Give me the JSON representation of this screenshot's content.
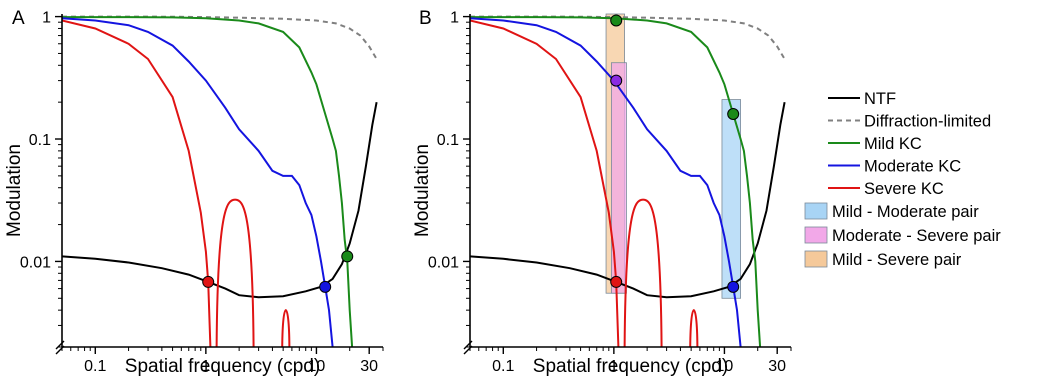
{
  "chart_data": [
    {
      "panel_label": "A",
      "type": "line",
      "xlabel": "Spatial frequency (cpd)",
      "ylabel": "Modulation",
      "x_scale": "log",
      "y_scale": "log",
      "xlim": [
        0.05,
        40
      ],
      "ylim": [
        0.002,
        1.05
      ],
      "x_ticks": [
        {
          "v": 0.1,
          "label": "0.1"
        },
        {
          "v": 1,
          "label": "1"
        },
        {
          "v": 10,
          "label": "10"
        },
        {
          "v": 30,
          "label": "30"
        }
      ],
      "y_ticks": [
        {
          "v": 0.01,
          "label": "0.01"
        },
        {
          "v": 0.1,
          "label": "0.1"
        },
        {
          "v": 1,
          "label": "1"
        }
      ],
      "grid": false,
      "series": [
        {
          "name": "NTF",
          "color": "#000000",
          "dash": "",
          "points": [
            [
              0.05,
              0.011
            ],
            [
              0.1,
              0.0105
            ],
            [
              0.2,
              0.0098
            ],
            [
              0.4,
              0.0088
            ],
            [
              0.7,
              0.0078
            ],
            [
              1.05,
              0.0068
            ],
            [
              1.5,
              0.006
            ],
            [
              2,
              0.0053
            ],
            [
              3,
              0.0051
            ],
            [
              5,
              0.0052
            ],
            [
              8,
              0.0057
            ],
            [
              11,
              0.0062
            ],
            [
              14,
              0.0072
            ],
            [
              17,
              0.0095
            ],
            [
              20,
              0.014
            ],
            [
              24,
              0.026
            ],
            [
              28,
              0.06
            ],
            [
              32,
              0.13
            ],
            [
              35,
              0.2
            ]
          ]
        },
        {
          "name": "Diffraction-limited",
          "color": "#808080",
          "dash": "5,4",
          "points": [
            [
              0.05,
              1
            ],
            [
              0.5,
              0.998
            ],
            [
              1,
              0.99
            ],
            [
              2,
              0.98
            ],
            [
              5,
              0.96
            ],
            [
              10,
              0.93
            ],
            [
              15,
              0.88
            ],
            [
              20,
              0.8
            ],
            [
              25,
              0.7
            ],
            [
              30,
              0.57
            ],
            [
              35,
              0.45
            ]
          ]
        },
        {
          "name": "Mild KC",
          "color": "#1a8a1a",
          "dash": "",
          "points": [
            [
              0.05,
              0.99
            ],
            [
              0.2,
              0.99
            ],
            [
              0.5,
              0.985
            ],
            [
              1,
              0.97
            ],
            [
              2,
              0.93
            ],
            [
              3,
              0.88
            ],
            [
              5,
              0.75
            ],
            [
              7,
              0.56
            ],
            [
              9,
              0.35
            ],
            [
              10,
              0.28
            ],
            [
              12,
              0.16
            ],
            [
              14,
              0.1
            ],
            [
              15,
              0.08
            ],
            [
              16,
              0.05
            ],
            [
              17,
              0.03
            ],
            [
              18,
              0.015
            ],
            [
              19,
              0.01
            ],
            [
              20,
              0.004
            ],
            [
              21,
              0.002
            ]
          ]
        },
        {
          "name": "Moderate KC",
          "color": "#1414e0",
          "dash": "",
          "points": [
            [
              0.05,
              0.97
            ],
            [
              0.1,
              0.93
            ],
            [
              0.2,
              0.85
            ],
            [
              0.3,
              0.75
            ],
            [
              0.5,
              0.58
            ],
            [
              0.7,
              0.43
            ],
            [
              1,
              0.3
            ],
            [
              1.5,
              0.18
            ],
            [
              2,
              0.12
            ],
            [
              3,
              0.08
            ],
            [
              4,
              0.055
            ],
            [
              5,
              0.05
            ],
            [
              6,
              0.05
            ],
            [
              7,
              0.042
            ],
            [
              8,
              0.03
            ],
            [
              9,
              0.024
            ],
            [
              10,
              0.016
            ],
            [
              11,
              0.01
            ],
            [
              12,
              0.0062
            ],
            [
              13,
              0.004
            ],
            [
              14,
              0.002
            ]
          ]
        },
        {
          "name": "Severe KC",
          "color": "#e01414",
          "dash": "",
          "points": [
            [
              0.05,
              0.93
            ],
            [
              0.1,
              0.8
            ],
            [
              0.2,
              0.6
            ],
            [
              0.3,
              0.45
            ],
            [
              0.5,
              0.22
            ],
            [
              0.7,
              0.08
            ],
            [
              0.9,
              0.025
            ],
            [
              1.0,
              0.012
            ],
            [
              1.05,
              0.0068
            ],
            [
              1.1,
              0.002
            ]
          ],
          "lobes": [
            {
              "x0": 1.25,
              "x1": 2.7,
              "peak": 0.032
            },
            {
              "x0": 4.9,
              "x1": 5.7,
              "peak": 0.004
            }
          ]
        }
      ],
      "markers": [
        {
          "x": 1.05,
          "y": 0.0068,
          "color": "#e01414"
        },
        {
          "x": 12,
          "y": 0.0062,
          "color": "#1414e0"
        },
        {
          "x": 19,
          "y": 0.011,
          "color": "#1a8a1a"
        }
      ],
      "highlights": []
    },
    {
      "panel_label": "B",
      "type": "line",
      "xlabel": "Spatial frequency (cpd)",
      "ylabel": "Modulation",
      "x_scale": "log",
      "y_scale": "log",
      "xlim": [
        0.05,
        40
      ],
      "ylim": [
        0.002,
        1.05
      ],
      "x_ticks": [
        {
          "v": 0.1,
          "label": "0.1"
        },
        {
          "v": 1,
          "label": "1"
        },
        {
          "v": 10,
          "label": "10"
        },
        {
          "v": 30,
          "label": "30"
        }
      ],
      "y_ticks": [
        {
          "v": 0.01,
          "label": "0.01"
        },
        {
          "v": 0.1,
          "label": "0.1"
        },
        {
          "v": 1,
          "label": "1"
        }
      ],
      "grid": false,
      "series": [
        {
          "name": "NTF",
          "color": "#000000",
          "dash": "",
          "points": [
            [
              0.05,
              0.011
            ],
            [
              0.1,
              0.0105
            ],
            [
              0.2,
              0.0098
            ],
            [
              0.4,
              0.0088
            ],
            [
              0.7,
              0.0078
            ],
            [
              1.05,
              0.0068
            ],
            [
              1.5,
              0.006
            ],
            [
              2,
              0.0053
            ],
            [
              3,
              0.0051
            ],
            [
              5,
              0.0052
            ],
            [
              8,
              0.0057
            ],
            [
              11,
              0.0062
            ],
            [
              14,
              0.0072
            ],
            [
              17,
              0.0095
            ],
            [
              20,
              0.014
            ],
            [
              24,
              0.026
            ],
            [
              28,
              0.06
            ],
            [
              32,
              0.13
            ],
            [
              35,
              0.2
            ]
          ]
        },
        {
          "name": "Diffraction-limited",
          "color": "#808080",
          "dash": "5,4",
          "points": [
            [
              0.05,
              1
            ],
            [
              0.5,
              0.998
            ],
            [
              1,
              0.99
            ],
            [
              2,
              0.98
            ],
            [
              5,
              0.96
            ],
            [
              10,
              0.93
            ],
            [
              15,
              0.88
            ],
            [
              20,
              0.8
            ],
            [
              25,
              0.7
            ],
            [
              30,
              0.57
            ],
            [
              35,
              0.45
            ]
          ]
        },
        {
          "name": "Mild KC",
          "color": "#1a8a1a",
          "dash": "",
          "points": [
            [
              0.05,
              0.99
            ],
            [
              0.2,
              0.99
            ],
            [
              0.5,
              0.985
            ],
            [
              1,
              0.97
            ],
            [
              2,
              0.93
            ],
            [
              3,
              0.88
            ],
            [
              5,
              0.75
            ],
            [
              7,
              0.56
            ],
            [
              9,
              0.35
            ],
            [
              10,
              0.28
            ],
            [
              12,
              0.16
            ],
            [
              14,
              0.1
            ],
            [
              15,
              0.08
            ],
            [
              16,
              0.05
            ],
            [
              17,
              0.03
            ],
            [
              18,
              0.015
            ],
            [
              19,
              0.01
            ],
            [
              20,
              0.004
            ],
            [
              21,
              0.002
            ]
          ]
        },
        {
          "name": "Moderate KC",
          "color": "#1414e0",
          "dash": "",
          "points": [
            [
              0.05,
              0.97
            ],
            [
              0.1,
              0.93
            ],
            [
              0.2,
              0.85
            ],
            [
              0.3,
              0.75
            ],
            [
              0.5,
              0.58
            ],
            [
              0.7,
              0.43
            ],
            [
              1,
              0.3
            ],
            [
              1.5,
              0.18
            ],
            [
              2,
              0.12
            ],
            [
              3,
              0.08
            ],
            [
              4,
              0.055
            ],
            [
              5,
              0.05
            ],
            [
              6,
              0.05
            ],
            [
              7,
              0.042
            ],
            [
              8,
              0.03
            ],
            [
              9,
              0.024
            ],
            [
              10,
              0.016
            ],
            [
              11,
              0.01
            ],
            [
              12,
              0.0062
            ],
            [
              13,
              0.004
            ],
            [
              14,
              0.002
            ]
          ]
        },
        {
          "name": "Severe KC",
          "color": "#e01414",
          "dash": "",
          "points": [
            [
              0.05,
              0.93
            ],
            [
              0.1,
              0.8
            ],
            [
              0.2,
              0.6
            ],
            [
              0.3,
              0.45
            ],
            [
              0.5,
              0.22
            ],
            [
              0.7,
              0.08
            ],
            [
              0.9,
              0.025
            ],
            [
              1.0,
              0.012
            ],
            [
              1.05,
              0.0068
            ],
            [
              1.1,
              0.002
            ]
          ],
          "lobes": [
            {
              "x0": 1.25,
              "x1": 2.7,
              "peak": 0.032
            },
            {
              "x0": 4.9,
              "x1": 5.7,
              "peak": 0.004
            }
          ]
        }
      ],
      "markers": [
        {
          "x": 1.05,
          "y": 0.93,
          "color": "#1a8a1a"
        },
        {
          "x": 1.05,
          "y": 0.3,
          "color": "#8a2be2"
        },
        {
          "x": 1.05,
          "y": 0.0068,
          "color": "#e01414"
        },
        {
          "x": 12,
          "y": 0.16,
          "color": "#1a8a1a"
        },
        {
          "x": 12,
          "y": 0.0062,
          "color": "#1414e0"
        }
      ],
      "highlights": [
        {
          "name": "Mild - Severe pair",
          "x0": 0.85,
          "x1": 1.25,
          "y0": 0.0055,
          "y1": 1.05,
          "color": "#f5c99a"
        },
        {
          "name": "Moderate - Severe pair",
          "x0": 0.95,
          "x1": 1.3,
          "y0": 0.0055,
          "y1": 0.42,
          "color": "#f2a8e8"
        },
        {
          "name": "Mild - Moderate pair",
          "x0": 9.5,
          "x1": 14,
          "y0": 0.005,
          "y1": 0.21,
          "color": "#a8d4f5"
        }
      ]
    }
  ],
  "legend": {
    "lines": [
      {
        "label": "NTF",
        "color": "#000000",
        "dash": ""
      },
      {
        "label": "Diffraction-limited",
        "color": "#808080",
        "dash": "5,4"
      },
      {
        "label": "Mild KC",
        "color": "#1a8a1a",
        "dash": ""
      },
      {
        "label": "Moderate KC",
        "color": "#1414e0",
        "dash": ""
      },
      {
        "label": "Severe KC",
        "color": "#e01414",
        "dash": ""
      }
    ],
    "boxes": [
      {
        "label": "Mild - Moderate pair",
        "color": "#a8d4f5"
      },
      {
        "label": "Moderate - Severe pair",
        "color": "#f2a8e8"
      },
      {
        "label": "Mild - Severe pair",
        "color": "#f5c99a"
      }
    ]
  }
}
